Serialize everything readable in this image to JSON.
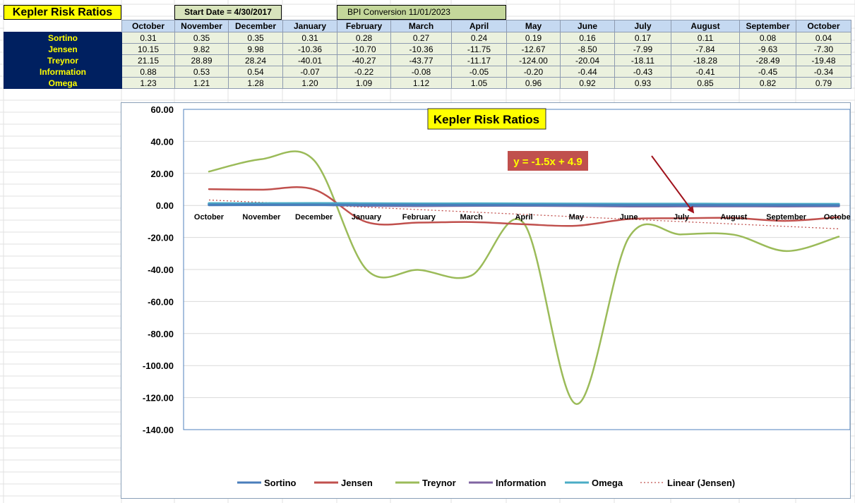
{
  "sheet": {
    "title": "Kepler Risk Ratios",
    "start_date": "Start Date = 4/30/2017",
    "bpi_conversion": "BPI Conversion 11/01/2023"
  },
  "table": {
    "months": [
      "October",
      "November",
      "December",
      "January",
      "February",
      "March",
      "April",
      "May",
      "June",
      "July",
      "August",
      "September",
      "October"
    ],
    "rows": [
      {
        "label": "Sortino",
        "values": [
          "0.31",
          "0.35",
          "0.35",
          "0.31",
          "0.28",
          "0.27",
          "0.24",
          "0.19",
          "0.16",
          "0.17",
          "0.11",
          "0.08",
          "0.04"
        ]
      },
      {
        "label": "Jensen",
        "values": [
          "10.15",
          "9.82",
          "9.98",
          "-10.36",
          "-10.70",
          "-10.36",
          "-11.75",
          "-12.67",
          "-8.50",
          "-7.99",
          "-7.84",
          "-9.63",
          "-7.30"
        ]
      },
      {
        "label": "Treynor",
        "values": [
          "21.15",
          "28.89",
          "28.24",
          "-40.01",
          "-40.27",
          "-43.77",
          "-11.17",
          "-124.00",
          "-20.04",
          "-18.11",
          "-18.28",
          "-28.49",
          "-19.48"
        ]
      },
      {
        "label": "Information",
        "values": [
          "0.88",
          "0.53",
          "0.54",
          "-0.07",
          "-0.22",
          "-0.08",
          "-0.05",
          "-0.20",
          "-0.44",
          "-0.43",
          "-0.41",
          "-0.45",
          "-0.34"
        ]
      },
      {
        "label": "Omega",
        "values": [
          "1.23",
          "1.21",
          "1.28",
          "1.20",
          "1.09",
          "1.12",
          "1.05",
          "0.96",
          "0.92",
          "0.93",
          "0.85",
          "0.82",
          "0.79"
        ]
      }
    ]
  },
  "chart_data": {
    "type": "line",
    "title": "Kepler Risk Ratios",
    "categories": [
      "October",
      "November",
      "December",
      "January",
      "February",
      "March",
      "April",
      "May",
      "June",
      "July",
      "August",
      "September",
      "October"
    ],
    "ylim": [
      -140,
      60
    ],
    "yticks": [
      "60.00",
      "40.00",
      "20.00",
      "0.00",
      "-20.00",
      "-40.00",
      "-60.00",
      "-80.00",
      "-100.00",
      "-120.00",
      "-140.00"
    ],
    "grid": true,
    "legend_position": "bottom",
    "trendline_equation": "y = -1.5x + 4.9",
    "series": [
      {
        "name": "Sortino",
        "color": "#4a7ebb",
        "values": [
          0.31,
          0.35,
          0.35,
          0.31,
          0.28,
          0.27,
          0.24,
          0.19,
          0.16,
          0.17,
          0.11,
          0.08,
          0.04
        ]
      },
      {
        "name": "Jensen",
        "color": "#c0504d",
        "values": [
          10.15,
          9.82,
          9.98,
          -10.36,
          -10.7,
          -10.36,
          -11.75,
          -12.67,
          -8.5,
          -7.99,
          -7.84,
          -9.63,
          -7.3
        ]
      },
      {
        "name": "Treynor",
        "color": "#9bbb59",
        "values": [
          21.15,
          28.89,
          28.24,
          -40.01,
          -40.27,
          -43.77,
          -11.17,
          -124.0,
          -20.04,
          -18.11,
          -18.28,
          -28.49,
          -19.48
        ]
      },
      {
        "name": "Information",
        "color": "#8064a2",
        "values": [
          0.88,
          0.53,
          0.54,
          -0.07,
          -0.22,
          -0.08,
          -0.05,
          -0.2,
          -0.44,
          -0.43,
          -0.41,
          -0.45,
          -0.34
        ]
      },
      {
        "name": "Omega",
        "color": "#4bacc6",
        "values": [
          1.23,
          1.21,
          1.28,
          1.2,
          1.09,
          1.12,
          1.05,
          0.96,
          0.92,
          0.93,
          0.85,
          0.82,
          0.79
        ]
      }
    ],
    "trendline": {
      "name": "Linear (Jensen)",
      "color": "#c0504d",
      "slope": -1.5,
      "intercept": 4.9
    }
  }
}
